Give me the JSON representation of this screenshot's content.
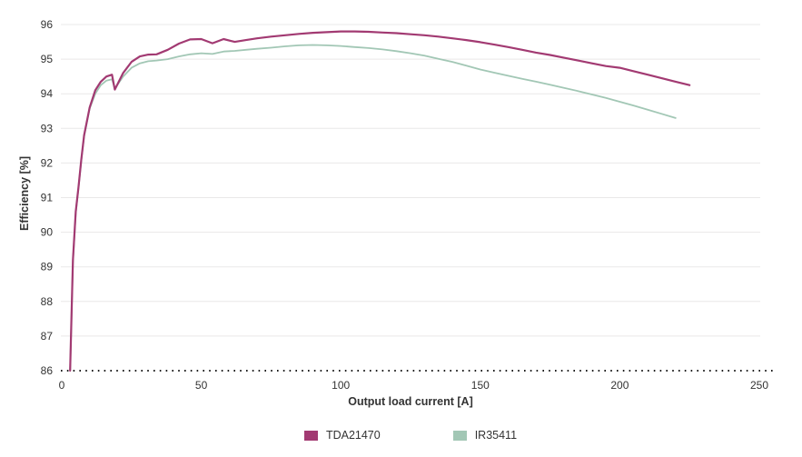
{
  "chart_data": {
    "type": "line",
    "title": "",
    "xlabel": "Output load current [A]",
    "ylabel": "Efficiency [%]",
    "xlim": [
      0,
      250
    ],
    "ylim": [
      86,
      96
    ],
    "x_ticks": [
      0,
      50,
      100,
      150,
      200,
      250
    ],
    "y_ticks": [
      86,
      87,
      88,
      89,
      90,
      91,
      92,
      93,
      94,
      95,
      96
    ],
    "grid": "horizontal-only",
    "x_axis_style": "dotted-black-baseline",
    "legend_position": "bottom-center",
    "series": [
      {
        "name": "TDA21470",
        "color": "#a23a72",
        "x": [
          3,
          4,
          5,
          6,
          7,
          8,
          10,
          12,
          14,
          16,
          18,
          19,
          22,
          25,
          28,
          31,
          34,
          38,
          42,
          46,
          50,
          54,
          58,
          62,
          66,
          70,
          75,
          80,
          85,
          90,
          95,
          100,
          105,
          110,
          115,
          120,
          125,
          130,
          135,
          140,
          145,
          150,
          155,
          160,
          165,
          170,
          175,
          180,
          185,
          190,
          195,
          200,
          205,
          210,
          215,
          220,
          225
        ],
        "y": [
          86.0,
          89.2,
          90.6,
          91.3,
          92.1,
          92.8,
          93.6,
          94.1,
          94.35,
          94.5,
          94.55,
          94.12,
          94.6,
          94.92,
          95.08,
          95.13,
          95.14,
          95.27,
          95.45,
          95.57,
          95.58,
          95.46,
          95.58,
          95.5,
          95.55,
          95.6,
          95.65,
          95.69,
          95.73,
          95.76,
          95.78,
          95.8,
          95.8,
          95.79,
          95.77,
          95.75,
          95.72,
          95.69,
          95.65,
          95.6,
          95.55,
          95.49,
          95.42,
          95.35,
          95.27,
          95.19,
          95.12,
          95.04,
          94.96,
          94.88,
          94.8,
          94.75,
          94.65,
          94.55,
          94.45,
          94.35,
          94.25
        ]
      },
      {
        "name": "IR35411",
        "color": "#a2c7b5",
        "x": [
          3,
          4,
          5,
          6,
          7,
          8,
          10,
          12,
          14,
          16,
          18,
          19,
          22,
          25,
          28,
          31,
          34,
          38,
          42,
          46,
          50,
          54,
          58,
          62,
          66,
          70,
          75,
          80,
          85,
          90,
          95,
          100,
          105,
          110,
          115,
          120,
          125,
          130,
          135,
          140,
          145,
          150,
          155,
          160,
          165,
          170,
          175,
          180,
          185,
          190,
          195,
          200,
          205,
          210,
          215,
          220
        ],
        "y": [
          86.0,
          89.15,
          90.55,
          91.27,
          92.07,
          92.77,
          93.57,
          94.0,
          94.25,
          94.38,
          94.42,
          94.15,
          94.5,
          94.75,
          94.88,
          94.94,
          94.96,
          95.0,
          95.08,
          95.14,
          95.17,
          95.15,
          95.22,
          95.24,
          95.27,
          95.3,
          95.33,
          95.37,
          95.4,
          95.41,
          95.4,
          95.38,
          95.35,
          95.32,
          95.28,
          95.23,
          95.17,
          95.1,
          95.01,
          94.92,
          94.81,
          94.7,
          94.61,
          94.52,
          94.43,
          94.35,
          94.26,
          94.17,
          94.08,
          93.98,
          93.88,
          93.77,
          93.66,
          93.54,
          93.42,
          93.3
        ]
      }
    ]
  },
  "colors": {
    "grid": "#e9e8e8",
    "axis_dotted": "#1c1c1c",
    "text": "#333333",
    "background": "#ffffff"
  }
}
